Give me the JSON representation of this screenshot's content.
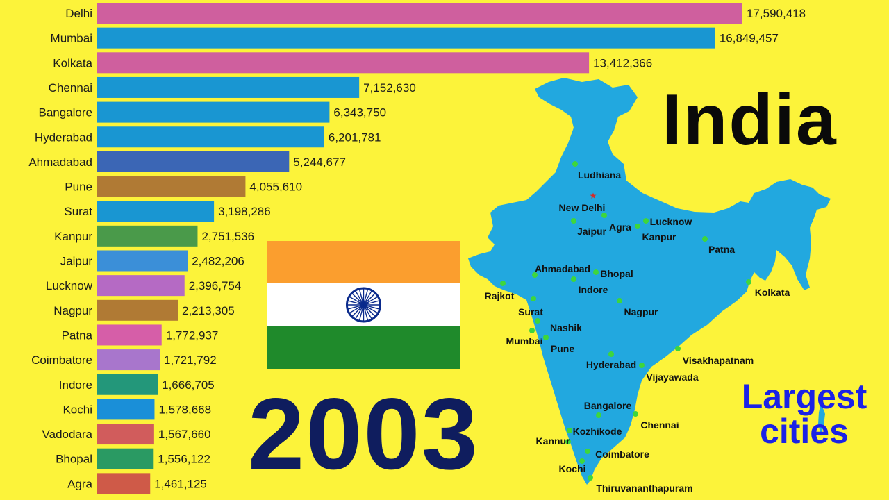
{
  "header": {
    "country": "India",
    "subtitle_line1": "Largest",
    "subtitle_line2": "cities"
  },
  "year": "2003",
  "colors": {
    "background": "#fcf33a",
    "map": "#22a8df",
    "city_dot": "#3ed63c",
    "capital_star": "#d42c2c",
    "year_text": "#0f1d5e",
    "subtitle_text": "#1b22e6"
  },
  "flag": {
    "saffron": "#fb9e2e",
    "white": "#ffffff",
    "green": "#1f8a2b",
    "chakra": "#0a2a8c"
  },
  "chart_data": {
    "type": "bar",
    "orientation": "horizontal",
    "categories": [
      "Delhi",
      "Mumbai",
      "Kolkata",
      "Chennai",
      "Bangalore",
      "Hyderabad",
      "Ahmadabad",
      "Pune",
      "Surat",
      "Kanpur",
      "Jaipur",
      "Lucknow",
      "Nagpur",
      "Patna",
      "Coimbatore",
      "Indore",
      "Kochi",
      "Vadodara",
      "Bhopal",
      "Agra"
    ],
    "values": [
      17590418,
      16849457,
      13412366,
      7152630,
      6343750,
      6201781,
      5244677,
      4055610,
      3198286,
      2751536,
      2482206,
      2396754,
      2213305,
      1772937,
      1721792,
      1666705,
      1578668,
      1567660,
      1556122,
      1461125
    ],
    "value_labels": [
      "17,590,418",
      "16,849,457",
      "13,412,366",
      "7,152,630",
      "6,343,750",
      "6,201,781",
      "5,244,677",
      "4,055,610",
      "3,198,286",
      "2,751,536",
      "2,482,206",
      "2,396,754",
      "2,213,305",
      "1,772,937",
      "1,721,792",
      "1,666,705",
      "1,578,668",
      "1,567,660",
      "1,556,122",
      "1,461,125"
    ],
    "bar_colors": [
      "#cf5f9e",
      "#1996d2",
      "#cf5f9e",
      "#1996d2",
      "#1996d2",
      "#1996d2",
      "#3b66b5",
      "#b07a34",
      "#1996d2",
      "#4a9a4a",
      "#3b8fd8",
      "#b56ac4",
      "#b07a34",
      "#d65ea8",
      "#a876cc",
      "#23977a",
      "#1a8fd8",
      "#d15c5c",
      "#2a9a63",
      "#cf5a48"
    ]
  },
  "map": {
    "capital": "New Delhi",
    "cities": [
      "Ludhiana",
      "New Delhi",
      "Jaipur",
      "Agra",
      "Lucknow",
      "Kanpur",
      "Patna",
      "Ahmadabad",
      "Bhopal",
      "Indore",
      "Rajkot",
      "Surat",
      "Nagpur",
      "Kolkata",
      "Nashik",
      "Mumbai",
      "Pune",
      "Hyderabad",
      "Visakhapatnam",
      "Vijayawada",
      "Bangalore",
      "Chennai",
      "Kozhikode",
      "Kannur",
      "Coimbatore",
      "Kochi",
      "Thiruvananthapuram"
    ]
  }
}
